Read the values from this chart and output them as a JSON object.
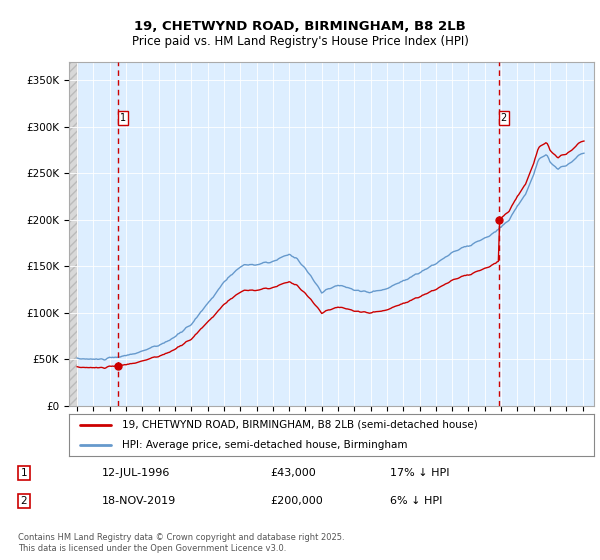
{
  "title_line1": "19, CHETWYND ROAD, BIRMINGHAM, B8 2LB",
  "title_line2": "Price paid vs. HM Land Registry's House Price Index (HPI)",
  "ylim": [
    0,
    370000
  ],
  "yticks": [
    0,
    50000,
    100000,
    150000,
    200000,
    250000,
    300000,
    350000
  ],
  "ytick_labels": [
    "£0",
    "£50K",
    "£100K",
    "£150K",
    "£200K",
    "£250K",
    "£300K",
    "£350K"
  ],
  "xmin": 1993.5,
  "xmax": 2025.7,
  "sale1_x": 1996.53,
  "sale1_y": 43000,
  "sale1_label": "1",
  "sale1_date": "12-JUL-1996",
  "sale1_price": "£43,000",
  "sale1_hpi": "17% ↓ HPI",
  "sale2_x": 2019.88,
  "sale2_y": 200000,
  "sale2_label": "2",
  "sale2_date": "18-NOV-2019",
  "sale2_price": "£200,000",
  "sale2_hpi": "6% ↓ HPI",
  "line_color_red": "#cc0000",
  "line_color_blue": "#6699cc",
  "bg_color": "#ddeeff",
  "grid_color": "#ffffff",
  "legend_line1": "19, CHETWYND ROAD, BIRMINGHAM, B8 2LB (semi-detached house)",
  "legend_line2": "HPI: Average price, semi-detached house, Birmingham",
  "footnote": "Contains HM Land Registry data © Crown copyright and database right 2025.\nThis data is licensed under the Open Government Licence v3.0."
}
